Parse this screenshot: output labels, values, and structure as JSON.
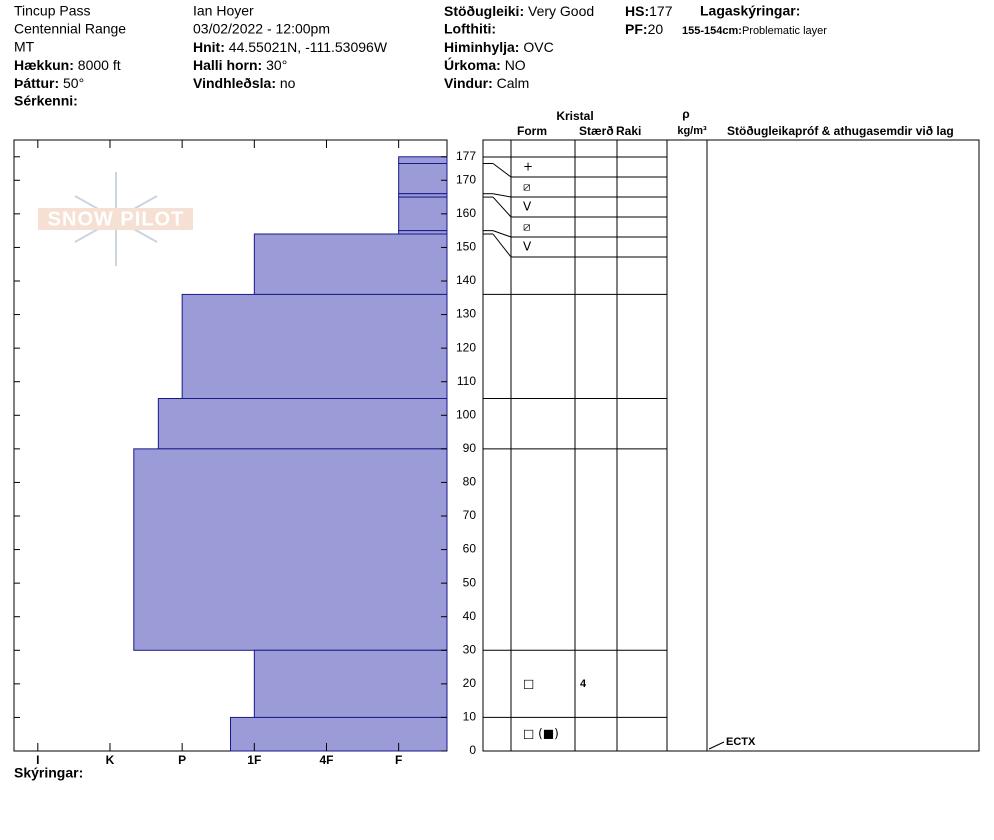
{
  "header": {
    "location": "Tincup Pass",
    "range": "Centennial Range",
    "state": "MT",
    "elevation": {
      "label": "Hækkun:",
      "value": "8000 ft"
    },
    "aspect": {
      "label": "Þáttur:",
      "value": "50°"
    },
    "features": {
      "label": "Sérkenni:"
    },
    "observer": "Ian Hoyer",
    "datetime": "03/02/2022 - 12:00pm",
    "coords": {
      "label": "Hnit:",
      "value": "44.55021N, -111.53096W"
    },
    "slope": {
      "label": "Halli horn:",
      "value": "30°"
    },
    "wind_loading": {
      "label": "Vindhleðsla:",
      "value": "no"
    },
    "stability": {
      "label": "Stöðugleiki:",
      "value": "Very Good"
    },
    "air_temp": {
      "label": "Lofthiti:"
    },
    "sky": {
      "label": "Himinhylja:",
      "value": "OVC"
    },
    "precip": {
      "label": "Úrkoma:",
      "value": "NO"
    },
    "wind": {
      "label": "Vindur:",
      "value": "Calm"
    },
    "hs": {
      "label": "HS:",
      "value": 177
    },
    "pf": {
      "label": "PF:",
      "value": 20
    },
    "layer_notes": {
      "label": "Lagaskýringar:"
    },
    "layer_note": {
      "label": "155-154cm:",
      "value": "Problematic layer"
    }
  },
  "logo": "SNOW PILOT",
  "chart_data": {
    "type": "snow-profile",
    "color": "#9b9bd7",
    "layers": [
      {
        "top": 177,
        "bottom": 175,
        "hardness": 1,
        "form": "+"
      },
      {
        "top": 175,
        "bottom": 166,
        "hardness": 1,
        "form": "⧄"
      },
      {
        "top": 166,
        "bottom": 165,
        "hardness": 1,
        "form": "V"
      },
      {
        "top": 165,
        "bottom": 155,
        "hardness": 1,
        "form": "⧄"
      },
      {
        "top": 155,
        "bottom": 154,
        "hardness": 1,
        "form": "V"
      },
      {
        "top": 154,
        "bottom": 136,
        "hardness": 3
      },
      {
        "top": 136,
        "bottom": 105,
        "hardness": 4
      },
      {
        "top": 105,
        "bottom": 90,
        "hardness": 4.33
      },
      {
        "top": 90,
        "bottom": 30,
        "hardness": 4.67
      },
      {
        "top": 30,
        "bottom": 10,
        "hardness": 3,
        "form": "□",
        "size": 4
      },
      {
        "top": 10,
        "bottom": 0,
        "hardness": 3.33,
        "form": "□ (■)"
      }
    ],
    "xlim": [
      6.33,
      0.33
    ],
    "xticks": [
      {
        "value": 6,
        "label": "I"
      },
      {
        "value": 5,
        "label": "K"
      },
      {
        "value": 4,
        "label": "P"
      },
      {
        "value": 3,
        "label": "1F"
      },
      {
        "value": 2,
        "label": "4F"
      },
      {
        "value": 1,
        "label": "F"
      }
    ],
    "ylim": [
      0,
      182
    ],
    "yticks": [
      0,
      10,
      20,
      30,
      40,
      50,
      60,
      70,
      80,
      90,
      100,
      110,
      120,
      130,
      140,
      150,
      160,
      170,
      177
    ],
    "tests": [
      {
        "height": 0,
        "result": "ECTX"
      }
    ]
  },
  "columns": {
    "crystal": "Kristal",
    "form": "Form",
    "size": "Stærð",
    "moisture": "Raki",
    "density": "ρ",
    "density_unit": "kg/m³",
    "tests": "Stöðugleikapróf & athugasemdir við lag"
  },
  "footer": {
    "notes": "Skýringar:"
  }
}
